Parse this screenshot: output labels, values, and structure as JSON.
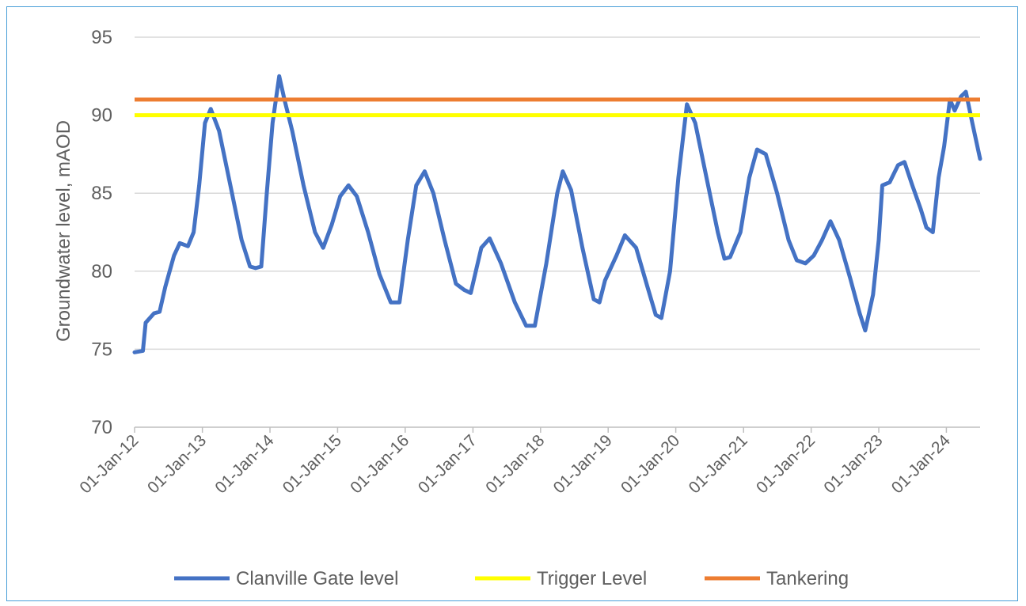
{
  "chart_data": {
    "type": "line",
    "title": "",
    "xlabel": "",
    "ylabel": "Groundwater level, mAOD",
    "ylim": [
      70,
      95
    ],
    "yticks": [
      "70",
      "75",
      "80",
      "85",
      "90",
      "95"
    ],
    "xlim": [
      "2012-01-01",
      "2024-07-01"
    ],
    "x_tick_labels": [
      "01-Jan-12",
      "01-Jan-13",
      "01-Jan-14",
      "01-Jan-15",
      "01-Jan-16",
      "01-Jan-17",
      "01-Jan-18",
      "01-Jan-19",
      "01-Jan-20",
      "01-Jan-21",
      "01-Jan-22",
      "01-Jan-23",
      "01-Jan-24"
    ],
    "grid": "horizontal",
    "legend_position": "bottom",
    "series": [
      {
        "name": "Clanville Gate level",
        "color": "#4472c4",
        "points": [
          [
            "2012-01-01",
            74.8
          ],
          [
            "2012-02-15",
            74.9
          ],
          [
            "2012-03-01",
            76.7
          ],
          [
            "2012-04-15",
            77.3
          ],
          [
            "2012-05-15",
            77.4
          ],
          [
            "2012-06-15",
            79.0
          ],
          [
            "2012-08-01",
            81.0
          ],
          [
            "2012-09-01",
            81.8
          ],
          [
            "2012-10-15",
            81.6
          ],
          [
            "2012-11-15",
            82.5
          ],
          [
            "2012-12-15",
            85.5
          ],
          [
            "2013-01-15",
            89.5
          ],
          [
            "2013-02-15",
            90.4
          ],
          [
            "2013-04-01",
            89.0
          ],
          [
            "2013-06-01",
            85.5
          ],
          [
            "2013-08-01",
            82.0
          ],
          [
            "2013-09-15",
            80.3
          ],
          [
            "2013-10-15",
            80.2
          ],
          [
            "2013-11-15",
            80.3
          ],
          [
            "2013-12-15",
            85.0
          ],
          [
            "2014-01-15",
            89.5
          ],
          [
            "2014-02-20",
            92.5
          ],
          [
            "2014-03-20",
            91.0
          ],
          [
            "2014-05-01",
            89.0
          ],
          [
            "2014-07-01",
            85.5
          ],
          [
            "2014-09-01",
            82.5
          ],
          [
            "2014-10-15",
            81.5
          ],
          [
            "2014-12-01",
            83.0
          ],
          [
            "2015-01-15",
            84.8
          ],
          [
            "2015-03-01",
            85.5
          ],
          [
            "2015-04-15",
            84.8
          ],
          [
            "2015-06-15",
            82.5
          ],
          [
            "2015-08-15",
            79.8
          ],
          [
            "2015-10-15",
            78.0
          ],
          [
            "2015-12-01",
            78.0
          ],
          [
            "2016-01-15",
            82.0
          ],
          [
            "2016-03-01",
            85.5
          ],
          [
            "2016-04-15",
            86.4
          ],
          [
            "2016-06-01",
            85.0
          ],
          [
            "2016-08-01",
            82.0
          ],
          [
            "2016-10-01",
            79.2
          ],
          [
            "2016-11-15",
            78.8
          ],
          [
            "2016-12-20",
            78.6
          ],
          [
            "2017-02-15",
            81.5
          ],
          [
            "2017-04-01",
            82.1
          ],
          [
            "2017-06-01",
            80.5
          ],
          [
            "2017-08-15",
            78.0
          ],
          [
            "2017-10-15",
            76.5
          ],
          [
            "2017-12-01",
            76.5
          ],
          [
            "2018-02-01",
            80.5
          ],
          [
            "2018-04-01",
            85.0
          ],
          [
            "2018-05-01",
            86.4
          ],
          [
            "2018-06-15",
            85.2
          ],
          [
            "2018-08-15",
            81.5
          ],
          [
            "2018-10-15",
            78.2
          ],
          [
            "2018-11-15",
            78.0
          ],
          [
            "2018-12-15",
            79.4
          ],
          [
            "2019-02-15",
            81.0
          ],
          [
            "2019-04-01",
            82.3
          ],
          [
            "2019-06-01",
            81.5
          ],
          [
            "2019-08-01",
            79.0
          ],
          [
            "2019-09-15",
            77.2
          ],
          [
            "2019-10-15",
            77.0
          ],
          [
            "2019-12-01",
            80.0
          ],
          [
            "2020-01-15",
            86.0
          ],
          [
            "2020-03-01",
            90.7
          ],
          [
            "2020-04-15",
            89.5
          ],
          [
            "2020-06-15",
            86.0
          ],
          [
            "2020-08-15",
            82.5
          ],
          [
            "2020-09-20",
            80.8
          ],
          [
            "2020-10-20",
            80.9
          ],
          [
            "2020-12-15",
            82.5
          ],
          [
            "2021-02-01",
            86.0
          ],
          [
            "2021-03-15",
            87.8
          ],
          [
            "2021-05-01",
            87.5
          ],
          [
            "2021-07-01",
            85.0
          ],
          [
            "2021-09-01",
            82.0
          ],
          [
            "2021-10-15",
            80.7
          ],
          [
            "2021-12-01",
            80.5
          ],
          [
            "2022-01-15",
            81.0
          ],
          [
            "2022-03-01",
            82.0
          ],
          [
            "2022-04-15",
            83.2
          ],
          [
            "2022-06-01",
            82.0
          ],
          [
            "2022-08-01",
            79.5
          ],
          [
            "2022-09-20",
            77.3
          ],
          [
            "2022-10-20",
            76.2
          ],
          [
            "2022-12-01",
            78.5
          ],
          [
            "2023-01-01",
            82.0
          ],
          [
            "2023-01-20",
            85.5
          ],
          [
            "2023-03-01",
            85.7
          ],
          [
            "2023-04-15",
            86.8
          ],
          [
            "2023-05-20",
            87.0
          ],
          [
            "2023-07-01",
            85.5
          ],
          [
            "2023-08-15",
            84.0
          ],
          [
            "2023-09-15",
            82.8
          ],
          [
            "2023-10-20",
            82.5
          ],
          [
            "2023-11-20",
            86.0
          ],
          [
            "2023-12-20",
            88.0
          ],
          [
            "2024-01-20",
            91.0
          ],
          [
            "2024-02-15",
            90.3
          ],
          [
            "2024-03-20",
            91.2
          ],
          [
            "2024-04-15",
            91.5
          ],
          [
            "2024-05-20",
            89.5
          ],
          [
            "2024-07-01",
            87.2
          ]
        ]
      },
      {
        "name": "Trigger Level",
        "color": "#ffff00",
        "value": 90
      },
      {
        "name": "Tankering",
        "color": "#ed7d31",
        "value": 91
      }
    ]
  }
}
